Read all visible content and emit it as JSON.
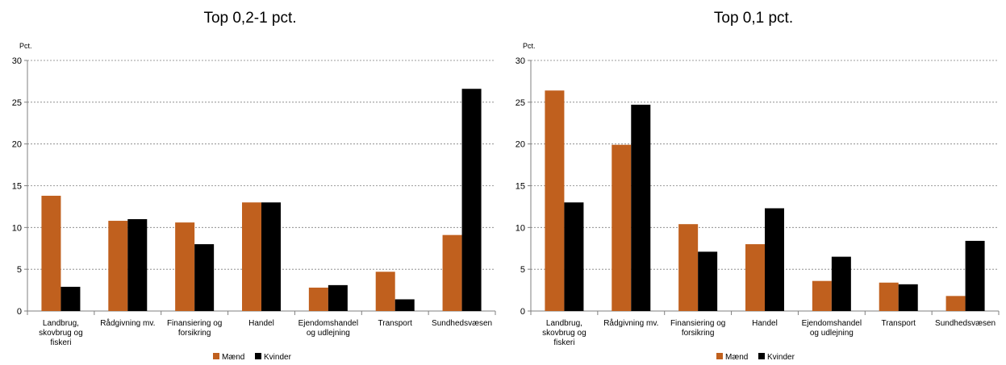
{
  "colors": {
    "maend": "#c0601e",
    "kvinder": "#000000",
    "grid": "#7f7f7f"
  },
  "chart_data": [
    {
      "type": "bar",
      "title": "Top 0,2-1 pct.",
      "ylabel": "Pct.",
      "ylim": [
        0,
        30
      ],
      "yticks": [
        "0",
        "5",
        "10",
        "15",
        "20",
        "25",
        "30"
      ],
      "categories": [
        [
          "Landbrug,",
          "skovbrug og",
          "fiskeri"
        ],
        [
          "Rådgivning mv."
        ],
        [
          "Finansiering og",
          "forsikring"
        ],
        [
          "Handel"
        ],
        [
          "Ejendomshandel",
          "og udlejning"
        ],
        [
          "Transport"
        ],
        [
          "Sundhedsvæsen"
        ]
      ],
      "series": [
        {
          "name": "Mænd",
          "values": [
            13.8,
            10.8,
            10.6,
            13.0,
            2.8,
            4.7,
            9.1
          ]
        },
        {
          "name": "Kvinder",
          "values": [
            2.9,
            11.0,
            8.0,
            13.0,
            3.1,
            1.4,
            26.6
          ]
        }
      ],
      "grid": true,
      "legend": "bottom"
    },
    {
      "type": "bar",
      "title": "Top 0,1 pct.",
      "ylabel": "Pct.",
      "ylim": [
        0,
        30
      ],
      "yticks": [
        "0",
        "5",
        "10",
        "15",
        "20",
        "25",
        "30"
      ],
      "categories": [
        [
          "Landbrug,",
          "skovbrug og",
          "fiskeri"
        ],
        [
          "Rådgivning mv."
        ],
        [
          "Finansiering og",
          "forsikring"
        ],
        [
          "Handel"
        ],
        [
          "Ejendomshandel",
          "og udlejning"
        ],
        [
          "Transport"
        ],
        [
          "Sundhedsvæsen"
        ]
      ],
      "series": [
        {
          "name": "Mænd",
          "values": [
            26.4,
            19.9,
            10.4,
            8.0,
            3.6,
            3.4,
            1.8
          ]
        },
        {
          "name": "Kvinder",
          "values": [
            13.0,
            24.7,
            7.1,
            12.3,
            6.5,
            3.2,
            8.4
          ]
        }
      ],
      "grid": true,
      "legend": "bottom"
    }
  ]
}
